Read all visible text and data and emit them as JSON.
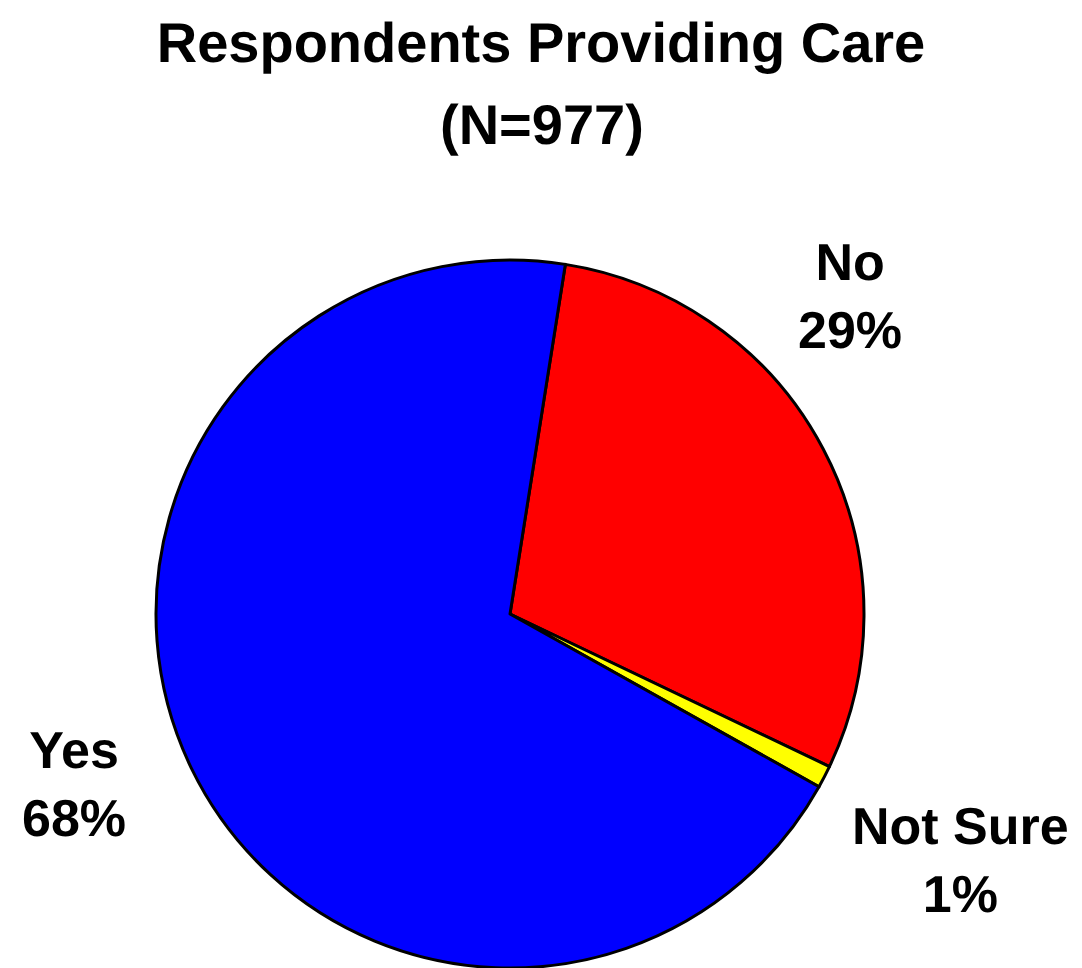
{
  "chart_data": {
    "type": "pie",
    "title": "Respondents Providing Care",
    "subtitle": "(N=977)",
    "categories": [
      "No",
      "Not Sure",
      "Yes"
    ],
    "values": [
      29,
      1,
      68
    ],
    "colors": [
      "#ff0000",
      "#ffff00",
      "#0000ff"
    ],
    "value_labels": [
      "29%",
      "1%",
      "68%"
    ]
  }
}
